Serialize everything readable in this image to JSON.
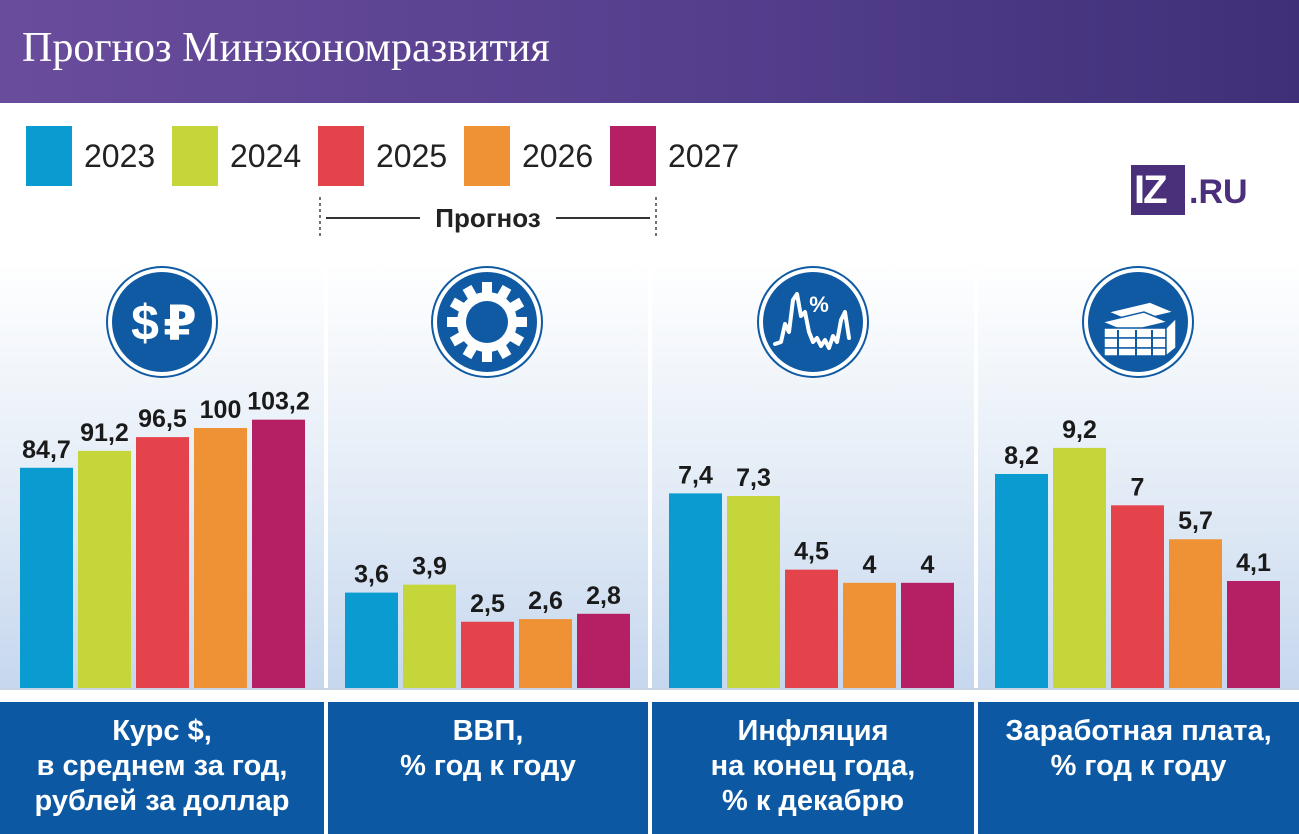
{
  "title": "Прогноз Минэкономразвития",
  "legend": [
    {
      "label": "2023",
      "color": "#0a9bd0"
    },
    {
      "label": "2024",
      "color": "#c5d63a"
    },
    {
      "label": "2025",
      "color": "#e5434b"
    },
    {
      "label": "2026",
      "color": "#ef9236"
    },
    {
      "label": "2027",
      "color": "#b52064"
    }
  ],
  "forecast_label": "Прогноз",
  "logo": {
    "left": "IZ",
    "right": ".RU"
  },
  "chart_data": [
    {
      "type": "bar",
      "categories": [
        "2023",
        "2024",
        "2025",
        "2026",
        "2027"
      ],
      "values": [
        84.7,
        91.2,
        96.5,
        100,
        103.2
      ],
      "labels": [
        "84,7",
        "91,2",
        "96,5",
        "100",
        "103,2"
      ],
      "icon": "dollar-ruble-icon",
      "caption": [
        "Курс $,",
        "в среднем за год,",
        "рублей за доллар"
      ]
    },
    {
      "type": "bar",
      "categories": [
        "2023",
        "2024",
        "2025",
        "2026",
        "2027"
      ],
      "values": [
        3.6,
        3.9,
        2.5,
        2.6,
        2.8
      ],
      "labels": [
        "3,6",
        "3,9",
        "2,5",
        "2,6",
        "2,8"
      ],
      "icon": "gear-icon",
      "caption": [
        "ВВП,",
        "% год к году"
      ]
    },
    {
      "type": "bar",
      "categories": [
        "2023",
        "2024",
        "2025",
        "2026",
        "2027"
      ],
      "values": [
        7.4,
        7.3,
        4.5,
        4,
        4
      ],
      "labels": [
        "7,4",
        "7,3",
        "4,5",
        "4",
        "4"
      ],
      "icon": "inflation-graph-icon",
      "caption": [
        "Инфляция",
        "на конец года,",
        "% к декабрю"
      ]
    },
    {
      "type": "bar",
      "categories": [
        "2023",
        "2024",
        "2025",
        "2026",
        "2027"
      ],
      "values": [
        8.2,
        9.2,
        7,
        5.7,
        4.1
      ],
      "labels": [
        "8,2",
        "9,2",
        "7",
        "5,7",
        "4,1"
      ],
      "icon": "money-stack-icon",
      "caption": [
        "Заработная плата,",
        "% год к году"
      ]
    }
  ]
}
